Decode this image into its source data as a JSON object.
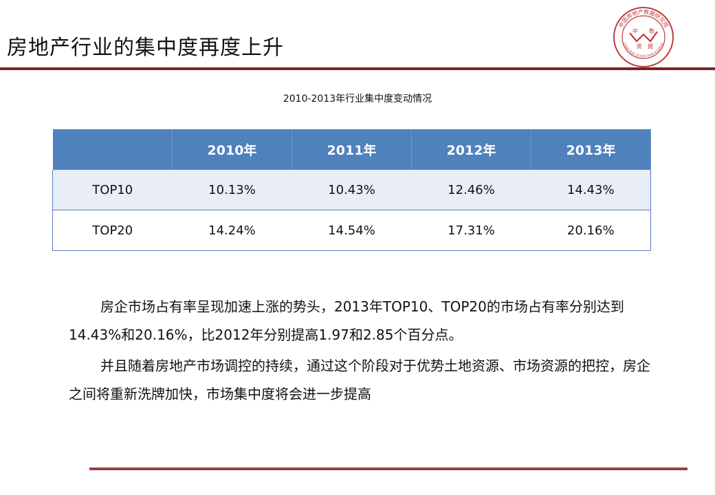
{
  "page": {
    "title": "房地产行业的集中度再度上升"
  },
  "logo": {
    "ring_text": "中国房地产数据研究院",
    "inner_chars": [
      "中",
      "数",
      "房",
      "据"
    ],
    "english_text": "CHINA REAL ESTATE DATA ACADEMY",
    "color": "#c0393b"
  },
  "table": {
    "caption": "2010-2013年行业集中度变动情况",
    "headers": [
      "",
      "2010年",
      "2011年",
      "2012年",
      "2013年"
    ],
    "rows": [
      [
        "TOP10",
        "10.13%",
        "10.43%",
        "12.46%",
        "14.43%"
      ],
      [
        "TOP20",
        "14.24%",
        "14.54%",
        "17.31%",
        "20.16%"
      ]
    ]
  },
  "paragraphs": [
    "房企市场占有率呈现加速上涨的势头，2013年TOP10、TOP20的市场占有率分别达到14.43%和20.16%，比2012年分别提高1.97和2.85个百分点。",
    "并且随着房地产市场调控的持续，通过这个阶段对于优势土地资源、市场资源的把控，房企之间将重新洗牌加快，市场集中度将会进一步提高"
  ],
  "colors": {
    "header_blue": "#4f81bd",
    "row_tint": "#e9edf5",
    "accent_red": "#7b2323"
  }
}
